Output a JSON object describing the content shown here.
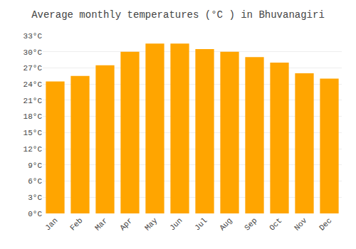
{
  "chart_data": {
    "type": "bar",
    "title": "Average monthly temperatures (°C ) in Bhuvanagiri",
    "categories": [
      "Jan",
      "Feb",
      "Mar",
      "Apr",
      "May",
      "Jun",
      "Jul",
      "Aug",
      "Sep",
      "Oct",
      "Nov",
      "Dec"
    ],
    "values": [
      24.5,
      25.5,
      27.5,
      30.0,
      31.5,
      31.5,
      30.5,
      30.0,
      29.0,
      28.0,
      26.0,
      25.0
    ],
    "color": "#FFA500",
    "ylim": [
      0,
      33
    ],
    "yticks": [
      {
        "value": 0,
        "label": "0°C"
      },
      {
        "value": 3,
        "label": "3°C"
      },
      {
        "value": 6,
        "label": "6°C"
      },
      {
        "value": 9,
        "label": "9°C"
      },
      {
        "value": 12,
        "label": "12°C"
      },
      {
        "value": 15,
        "label": "15°C"
      },
      {
        "value": 18,
        "label": "18°C"
      },
      {
        "value": 21,
        "label": "21°C"
      },
      {
        "value": 24,
        "label": "24°C"
      },
      {
        "value": 27,
        "label": "27°C"
      },
      {
        "value": 30,
        "label": "30°C"
      },
      {
        "value": 33,
        "label": "33°C"
      }
    ],
    "grid": true
  }
}
